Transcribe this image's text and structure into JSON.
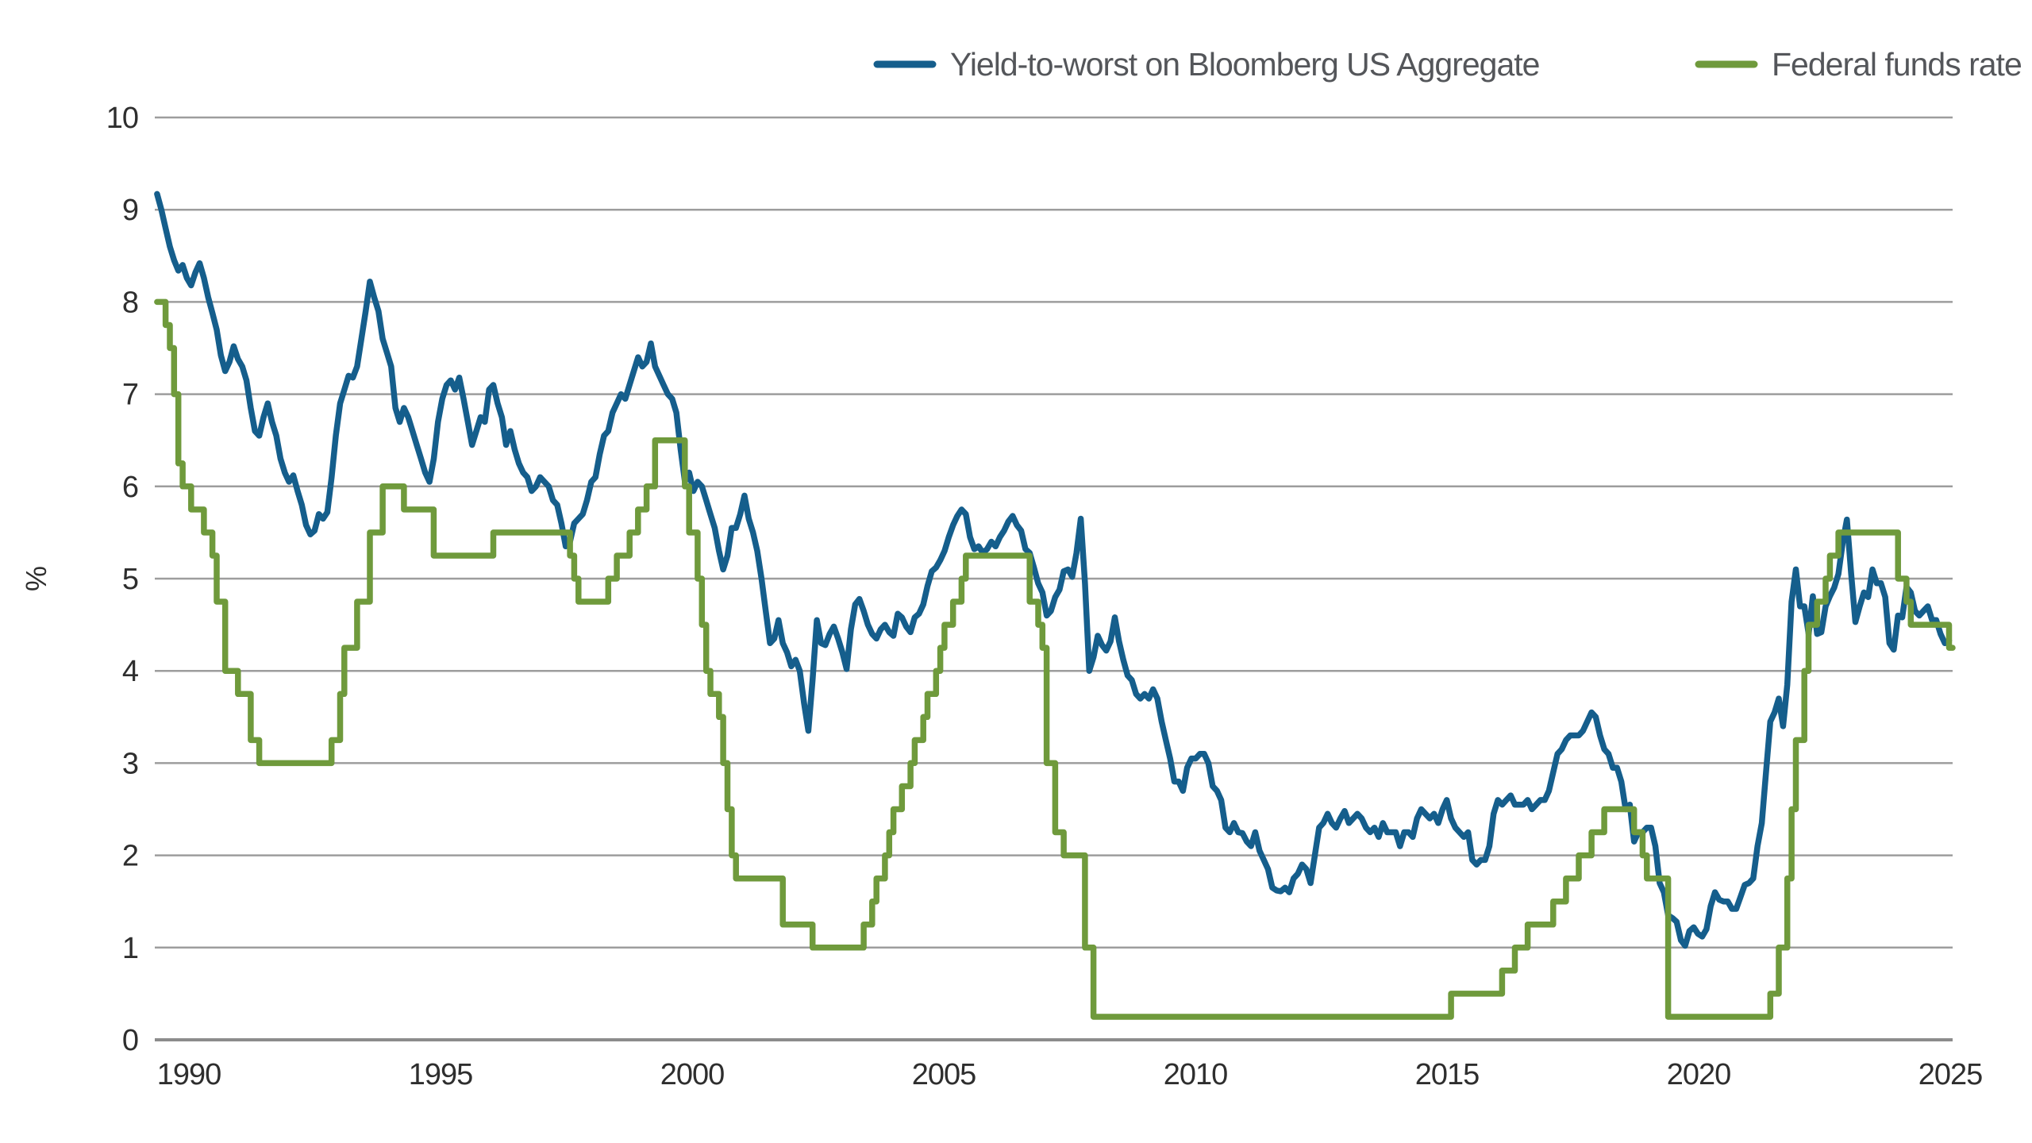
{
  "page": {
    "background": "#ffffff"
  },
  "legend": {
    "position": "top",
    "items": [
      {
        "label": "Yield-to-worst on Bloomberg US Aggregate",
        "color": "#155E8C"
      },
      {
        "label": "Federal funds rate",
        "color": "#6F9A3C"
      }
    ]
  },
  "axes": {
    "y": {
      "label": "%",
      "ticks": [
        0,
        1,
        2,
        3,
        4,
        5,
        6,
        7,
        8,
        9,
        10
      ]
    },
    "x": {
      "ticks": [
        1990,
        1995,
        2000,
        2005,
        2010,
        2015,
        2020,
        2025
      ]
    }
  },
  "colors": {
    "gridline": "#9d9d9d",
    "baseline": "#8c8c8c",
    "yield_line": "#155E8C",
    "fed_funds_line": "#6F9A3C"
  },
  "chart_data": {
    "type": "line",
    "title": "",
    "xlabel": "",
    "ylabel": "%",
    "ylim": [
      0,
      10
    ],
    "xlim": [
      1990.6,
      2025.9
    ],
    "grid": "horizontal",
    "legend_position": "top",
    "x_ticks": [
      1990,
      1995,
      2000,
      2005,
      2010,
      2015,
      2020,
      2025
    ],
    "y_ticks": [
      0,
      1,
      2,
      3,
      4,
      5,
      6,
      7,
      8,
      9,
      10
    ],
    "series": [
      {
        "name": "Yield-to-worst on Bloomberg US Aggregate",
        "color": "#155E8C",
        "mode": "monthly",
        "start_year": 1990.6667,
        "step_years": 0.0833333,
        "values": [
          9.17,
          9.0,
          8.8,
          8.6,
          8.45,
          8.34,
          8.4,
          8.26,
          8.18,
          8.32,
          8.42,
          8.26,
          8.05,
          7.88,
          7.7,
          7.42,
          7.25,
          7.35,
          7.52,
          7.38,
          7.3,
          7.15,
          6.85,
          6.6,
          6.55,
          6.75,
          6.9,
          6.7,
          6.55,
          6.3,
          6.15,
          6.05,
          6.12,
          5.95,
          5.8,
          5.58,
          5.48,
          5.52,
          5.7,
          5.65,
          5.72,
          6.1,
          6.55,
          6.9,
          7.05,
          7.2,
          7.18,
          7.3,
          7.6,
          7.9,
          8.22,
          8.05,
          7.9,
          7.6,
          7.45,
          7.3,
          6.85,
          6.7,
          6.85,
          6.75,
          6.6,
          6.45,
          6.3,
          6.15,
          6.05,
          6.3,
          6.7,
          6.95,
          7.1,
          7.15,
          7.05,
          7.18,
          6.95,
          6.7,
          6.45,
          6.6,
          6.75,
          6.7,
          7.05,
          7.1,
          6.9,
          6.75,
          6.45,
          6.6,
          6.4,
          6.25,
          6.15,
          6.1,
          5.95,
          6.0,
          6.1,
          6.05,
          6.0,
          5.85,
          5.8,
          5.6,
          5.35,
          5.4,
          5.6,
          5.65,
          5.7,
          5.85,
          6.05,
          6.1,
          6.35,
          6.55,
          6.6,
          6.8,
          6.9,
          7.0,
          6.95,
          7.1,
          7.25,
          7.4,
          7.3,
          7.35,
          7.55,
          7.3,
          7.2,
          7.1,
          7.0,
          6.95,
          6.8,
          6.4,
          6.05,
          6.15,
          5.95,
          6.05,
          6.0,
          5.85,
          5.7,
          5.55,
          5.3,
          5.1,
          5.25,
          5.55,
          5.55,
          5.7,
          5.9,
          5.65,
          5.5,
          5.3,
          5.0,
          4.65,
          4.3,
          4.35,
          4.55,
          4.3,
          4.2,
          4.05,
          4.12,
          4.0,
          3.65,
          3.35,
          3.9,
          4.55,
          4.3,
          4.28,
          4.4,
          4.48,
          4.35,
          4.2,
          4.02,
          4.45,
          4.72,
          4.78,
          4.65,
          4.5,
          4.4,
          4.35,
          4.45,
          4.5,
          4.42,
          4.38,
          4.62,
          4.58,
          4.48,
          4.42,
          4.58,
          4.62,
          4.72,
          4.92,
          5.08,
          5.12,
          5.2,
          5.3,
          5.45,
          5.58,
          5.68,
          5.75,
          5.7,
          5.45,
          5.32,
          5.35,
          5.28,
          5.32,
          5.4,
          5.35,
          5.45,
          5.52,
          5.62,
          5.68,
          5.58,
          5.52,
          5.32,
          5.28,
          5.12,
          4.95,
          4.85,
          4.6,
          4.65,
          4.8,
          4.88,
          5.08,
          5.1,
          5.02,
          5.28,
          5.65,
          4.95,
          4.0,
          4.15,
          4.38,
          4.28,
          4.22,
          4.32,
          4.58,
          4.32,
          4.12,
          3.95,
          3.9,
          3.75,
          3.7,
          3.75,
          3.7,
          3.8,
          3.7,
          3.45,
          3.25,
          3.05,
          2.8,
          2.8,
          2.7,
          2.95,
          3.05,
          3.05,
          3.1,
          3.1,
          3.0,
          2.75,
          2.7,
          2.6,
          2.3,
          2.25,
          2.35,
          2.25,
          2.24,
          2.15,
          2.1,
          2.25,
          2.05,
          1.95,
          1.85,
          1.65,
          1.62,
          1.61,
          1.65,
          1.6,
          1.75,
          1.8,
          1.9,
          1.85,
          1.7,
          2.0,
          2.3,
          2.35,
          2.45,
          2.35,
          2.3,
          2.4,
          2.48,
          2.35,
          2.4,
          2.45,
          2.4,
          2.3,
          2.25,
          2.3,
          2.2,
          2.35,
          2.25,
          2.25,
          2.25,
          2.1,
          2.25,
          2.25,
          2.2,
          2.4,
          2.5,
          2.45,
          2.4,
          2.45,
          2.35,
          2.5,
          2.6,
          2.4,
          2.3,
          2.25,
          2.2,
          2.25,
          1.95,
          1.9,
          1.95,
          1.95,
          2.1,
          2.45,
          2.6,
          2.55,
          2.6,
          2.65,
          2.55,
          2.55,
          2.55,
          2.6,
          2.5,
          2.55,
          2.6,
          2.6,
          2.7,
          2.9,
          3.1,
          3.15,
          3.25,
          3.3,
          3.3,
          3.3,
          3.35,
          3.45,
          3.55,
          3.5,
          3.3,
          3.15,
          3.1,
          2.95,
          2.95,
          2.8,
          2.5,
          2.55,
          2.15,
          2.25,
          2.25,
          2.3,
          2.3,
          2.1,
          1.7,
          1.6,
          1.35,
          1.32,
          1.28,
          1.08,
          1.02,
          1.18,
          1.22,
          1.15,
          1.12,
          1.2,
          1.45,
          1.6,
          1.52,
          1.5,
          1.5,
          1.42,
          1.42,
          1.55,
          1.68,
          1.7,
          1.75,
          2.1,
          2.35,
          2.9,
          3.45,
          3.55,
          3.7,
          3.4,
          3.85,
          4.75,
          5.1,
          4.7,
          4.7,
          4.4,
          4.81,
          4.4,
          4.42,
          4.7,
          4.81,
          4.9,
          5.05,
          5.39,
          5.64,
          5.05,
          4.53,
          4.7,
          4.85,
          4.8,
          5.1,
          4.95,
          4.95,
          4.8,
          4.3,
          4.23,
          4.6,
          4.58,
          4.91,
          4.85,
          4.65,
          4.6,
          4.65,
          4.7,
          4.55,
          4.55,
          4.4,
          4.3,
          4.33
        ]
      },
      {
        "name": "Federal funds rate",
        "color": "#6F9A3C",
        "mode": "steps",
        "end_year": 2025.83,
        "points": [
          [
            1990.667,
            8.0
          ],
          [
            1990.833,
            7.75
          ],
          [
            1990.917,
            7.5
          ],
          [
            1991.0,
            7.0
          ],
          [
            1991.083,
            6.25
          ],
          [
            1991.167,
            6.0
          ],
          [
            1991.333,
            5.75
          ],
          [
            1991.583,
            5.5
          ],
          [
            1991.75,
            5.25
          ],
          [
            1991.833,
            4.75
          ],
          [
            1992.0,
            4.0
          ],
          [
            1992.25,
            3.75
          ],
          [
            1992.5,
            3.25
          ],
          [
            1992.667,
            3.0
          ],
          [
            1994.083,
            3.25
          ],
          [
            1994.25,
            3.75
          ],
          [
            1994.333,
            4.25
          ],
          [
            1994.583,
            4.75
          ],
          [
            1994.833,
            5.5
          ],
          [
            1995.083,
            6.0
          ],
          [
            1995.5,
            5.75
          ],
          [
            1996.083,
            5.25
          ],
          [
            1997.25,
            5.5
          ],
          [
            1998.75,
            5.25
          ],
          [
            1998.833,
            5.0
          ],
          [
            1998.917,
            4.75
          ],
          [
            1999.5,
            5.0
          ],
          [
            1999.667,
            5.25
          ],
          [
            1999.917,
            5.5
          ],
          [
            2000.083,
            5.75
          ],
          [
            2000.25,
            6.0
          ],
          [
            2000.417,
            6.5
          ],
          [
            2001.0,
            6.0
          ],
          [
            2001.083,
            5.5
          ],
          [
            2001.25,
            5.0
          ],
          [
            2001.333,
            4.5
          ],
          [
            2001.417,
            4.0
          ],
          [
            2001.5,
            3.75
          ],
          [
            2001.667,
            3.5
          ],
          [
            2001.75,
            3.0
          ],
          [
            2001.833,
            2.5
          ],
          [
            2001.917,
            2.0
          ],
          [
            2002.0,
            1.75
          ],
          [
            2002.917,
            1.25
          ],
          [
            2003.5,
            1.0
          ],
          [
            2004.5,
            1.25
          ],
          [
            2004.667,
            1.5
          ],
          [
            2004.75,
            1.75
          ],
          [
            2004.917,
            2.0
          ],
          [
            2005.0,
            2.25
          ],
          [
            2005.083,
            2.5
          ],
          [
            2005.25,
            2.75
          ],
          [
            2005.417,
            3.0
          ],
          [
            2005.5,
            3.25
          ],
          [
            2005.667,
            3.5
          ],
          [
            2005.75,
            3.75
          ],
          [
            2005.917,
            4.0
          ],
          [
            2006.0,
            4.25
          ],
          [
            2006.083,
            4.5
          ],
          [
            2006.25,
            4.75
          ],
          [
            2006.417,
            5.0
          ],
          [
            2006.5,
            5.25
          ],
          [
            2007.75,
            4.75
          ],
          [
            2007.917,
            4.5
          ],
          [
            2008.0,
            4.25
          ],
          [
            2008.083,
            3.0
          ],
          [
            2008.25,
            2.25
          ],
          [
            2008.417,
            2.0
          ],
          [
            2008.833,
            1.0
          ],
          [
            2009.0,
            0.25
          ],
          [
            2016.0,
            0.5
          ],
          [
            2017.0,
            0.75
          ],
          [
            2017.25,
            1.0
          ],
          [
            2017.5,
            1.25
          ],
          [
            2018.0,
            1.5
          ],
          [
            2018.25,
            1.75
          ],
          [
            2018.5,
            2.0
          ],
          [
            2018.75,
            2.25
          ],
          [
            2019.0,
            2.5
          ],
          [
            2019.583,
            2.25
          ],
          [
            2019.75,
            2.0
          ],
          [
            2019.833,
            1.75
          ],
          [
            2020.25,
            0.25
          ],
          [
            2022.25,
            0.5
          ],
          [
            2022.417,
            1.0
          ],
          [
            2022.583,
            1.75
          ],
          [
            2022.667,
            2.5
          ],
          [
            2022.75,
            3.25
          ],
          [
            2022.917,
            4.0
          ],
          [
            2023.0,
            4.5
          ],
          [
            2023.167,
            4.75
          ],
          [
            2023.333,
            5.0
          ],
          [
            2023.417,
            5.25
          ],
          [
            2023.583,
            5.5
          ],
          [
            2024.75,
            5.0
          ],
          [
            2024.917,
            4.75
          ],
          [
            2025.0,
            4.5
          ],
          [
            2025.75,
            4.25
          ]
        ]
      }
    ]
  }
}
